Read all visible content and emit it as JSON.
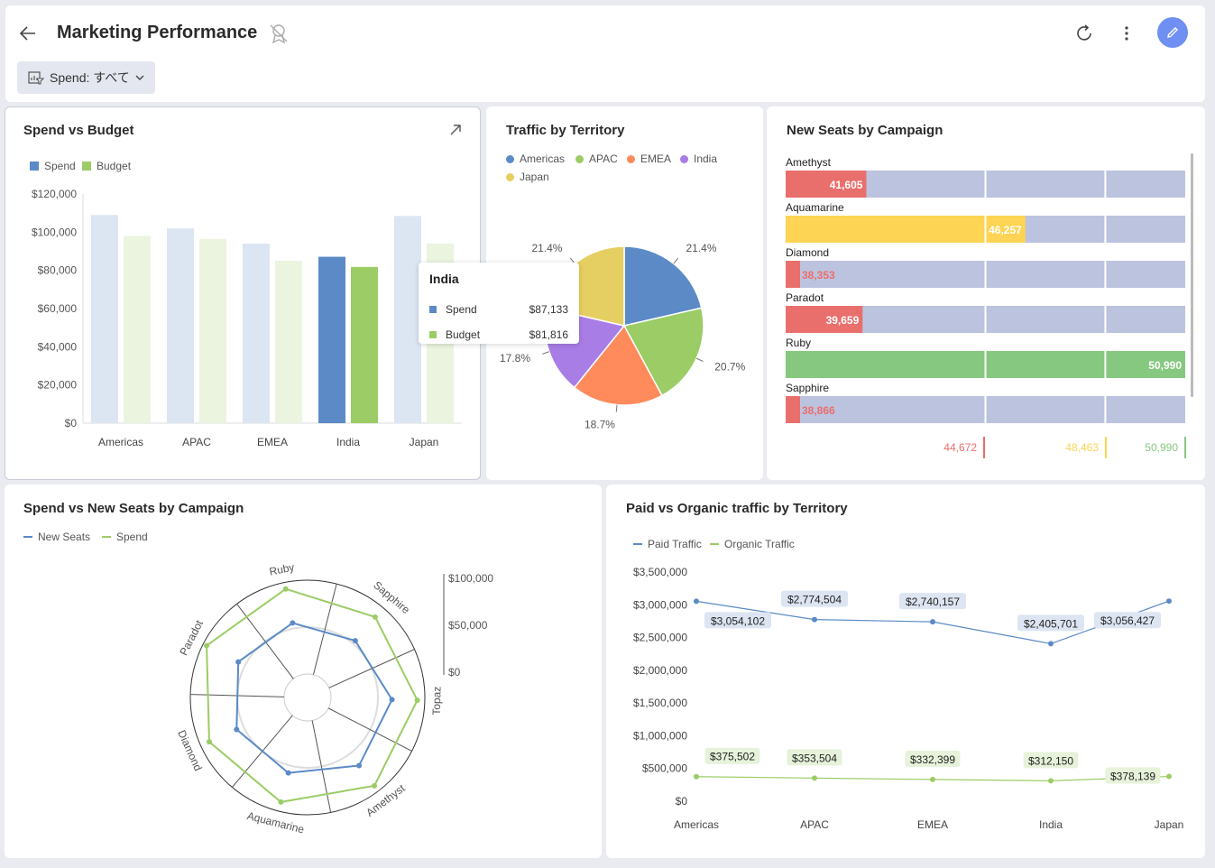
{
  "header": {
    "title": "Marketing Performance",
    "filter_label": "Spend: すべて"
  },
  "colors": {
    "spend": "#5b8ac6",
    "spend_light": "#dce6f3",
    "budget": "#9ccc65",
    "budget_light": "#eaf4df",
    "americas": "#5b8ac6",
    "apac": "#9ccc65",
    "emea": "#ff8a5c",
    "india": "#a87de6",
    "japan": "#e6cf62",
    "accent": "#6f8ff2"
  },
  "spend_budget": {
    "title": "Spend vs Budget",
    "legend": [
      "Spend",
      "Budget"
    ],
    "tooltip": {
      "title": "India",
      "rows": [
        {
          "label": "Spend",
          "value": "$87,133"
        },
        {
          "label": "Budget",
          "value": "$81,816"
        }
      ]
    }
  },
  "traffic_territory": {
    "title": "Traffic by Territory",
    "legend": [
      "Americas",
      "APAC",
      "EMEA",
      "India",
      "Japan"
    ]
  },
  "new_seats": {
    "title": "New Seats by Campaign",
    "rows": [
      {
        "label": "Amethyst",
        "value": 41605,
        "text": "41,605",
        "color": "#e96f6c",
        "text_inside": true
      },
      {
        "label": "Aquamarine",
        "value": 46257,
        "text": "46,257",
        "color": "#fdd453",
        "text_inside": true
      },
      {
        "label": "Diamond",
        "value": 38353,
        "text": "38,353",
        "color": "#e96f6c",
        "text_inside": false
      },
      {
        "label": "Paradot",
        "value": 39659,
        "text": "39,659",
        "color": "#e96f6c",
        "text_inside": true
      },
      {
        "label": "Ruby",
        "value": 50990,
        "text": "50,990",
        "color": "#86c880",
        "text_inside": true
      },
      {
        "label": "Sapphire",
        "value": 38866,
        "text": "38,866",
        "color": "#e96f6c",
        "text_inside": false
      }
    ],
    "max": 50990,
    "band_color": "#bcc3df",
    "thresholds": [
      {
        "label": "44,672",
        "color": "#e96f6c"
      },
      {
        "label": "48,463",
        "color": "#fdd453"
      },
      {
        "label": "50,990",
        "color": "#86c880"
      }
    ]
  },
  "radar": {
    "title": "Spend vs New Seats by Campaign",
    "legend": [
      "New Seats",
      "Spend"
    ],
    "axes": [
      "Sapphire",
      "Topaz",
      "Amethyst",
      "Aquamarine",
      "Diamond",
      "Paradot",
      "Ruby"
    ],
    "scale_labels": [
      "$100,000",
      "$50,000",
      "$0"
    ]
  },
  "paid_organic": {
    "title": "Paid vs Organic traffic by Territory",
    "legend": [
      "Paid Traffic",
      "Organic Traffic"
    ]
  },
  "chart_data": [
    {
      "type": "bar",
      "title": "Spend vs Budget",
      "categories": [
        "Americas",
        "APAC",
        "EMEA",
        "India",
        "Japan"
      ],
      "series": [
        {
          "name": "Spend",
          "values": [
            109000,
            102000,
            94000,
            87133,
            108500
          ]
        },
        {
          "name": "Budget",
          "values": [
            98000,
            96500,
            85000,
            81816,
            94000
          ]
        }
      ],
      "ylim": [
        0,
        120000
      ],
      "yticks": [
        "$0",
        "$20,000",
        "$40,000",
        "$60,000",
        "$80,000",
        "$100,000",
        "$120,000"
      ],
      "highlight": "India"
    },
    {
      "type": "pie",
      "title": "Traffic by Territory",
      "categories": [
        "Americas",
        "APAC",
        "EMEA",
        "India",
        "Japan"
      ],
      "values": [
        21.4,
        20.7,
        18.7,
        17.8,
        21.4
      ],
      "labels": [
        "21.4%",
        "20.7%",
        "18.7%",
        "17.8%",
        "21.4%"
      ]
    },
    {
      "type": "line",
      "title": "Spend vs New Seats by Campaign",
      "categories": [
        "Sapphire",
        "Topaz",
        "Amethyst",
        "Aquamarine",
        "Diamond",
        "Paradot",
        "Ruby"
      ],
      "series": [
        {
          "name": "New Seats",
          "values": [
            54000,
            65000,
            66000,
            58000,
            58000,
            58000,
            56000
          ]
        },
        {
          "name": "Spend",
          "values": [
            87000,
            92000,
            93000,
            90000,
            90000,
            96000,
            93000
          ]
        }
      ],
      "ylim": [
        0,
        100000
      ]
    },
    {
      "type": "line",
      "title": "Paid vs Organic traffic by Territory",
      "categories": [
        "Americas",
        "APAC",
        "EMEA",
        "India",
        "Japan"
      ],
      "series": [
        {
          "name": "Paid Traffic",
          "values": [
            3054102,
            2774504,
            2740157,
            2405701,
            3056427
          ],
          "labels": [
            "$3,054,102",
            "$2,774,504",
            "$2,740,157",
            "$2,405,701",
            "$3,056,427"
          ]
        },
        {
          "name": "Organic Traffic",
          "values": [
            375502,
            353504,
            332399,
            312150,
            378139
          ],
          "labels": [
            "$375,502",
            "$353,504",
            "$332,399",
            "$312,150",
            "$378,139"
          ]
        }
      ],
      "ylim": [
        0,
        3500000
      ],
      "yticks": [
        "$0",
        "$500,000",
        "$1,000,000",
        "$1,500,000",
        "$2,000,000",
        "$2,500,000",
        "$3,000,000",
        "$3,500,000"
      ]
    }
  ]
}
